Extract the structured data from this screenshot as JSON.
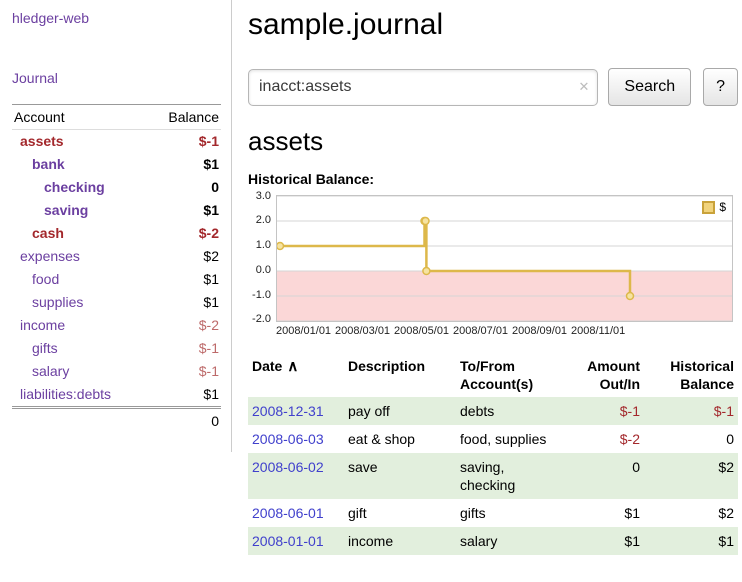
{
  "colors": {
    "link": "#6b3fa0",
    "date": "#4040cc",
    "neg": "#a3282c",
    "negsoft": "#bd6a6a",
    "row-green": "#e2efdd"
  },
  "sidebar": {
    "brand": "hledger-web",
    "journal_label": "Journal",
    "accounts": {
      "account_header": "Account",
      "balance_header": "Balance",
      "rows": [
        {
          "account": "assets",
          "balance": "$-1"
        },
        {
          "account": "bank",
          "balance": "$1"
        },
        {
          "account": "checking",
          "balance": "0"
        },
        {
          "account": "saving",
          "balance": "$1"
        },
        {
          "account": "cash",
          "balance": "$-2"
        },
        {
          "account": "expenses",
          "balance": "$2"
        },
        {
          "account": "food",
          "balance": "$1"
        },
        {
          "account": "supplies",
          "balance": "$1"
        },
        {
          "account": "income",
          "balance": "$-2"
        },
        {
          "account": "gifts",
          "balance": "$-1"
        },
        {
          "account": "salary",
          "balance": "$-1"
        },
        {
          "account": "liabilities:debts",
          "balance": "$1"
        }
      ],
      "total": "0"
    }
  },
  "main": {
    "title": "sample.journal",
    "search": {
      "value": "inacct:assets",
      "clear_icon": "✕",
      "button_label": "Search",
      "help_label": "?"
    },
    "heading": "assets",
    "register": {
      "headers": {
        "date": "Date",
        "sort_indicator": "∧",
        "description": "Description",
        "accounts_line1": "To/From",
        "accounts_line2": "Account(s)",
        "amount_line1": "Amount",
        "amount_line2": "Out/In",
        "balance_line1": "Historical",
        "balance_line2": "Balance"
      },
      "rows": [
        {
          "date": "2008-12-31",
          "description": "pay off",
          "accounts": "debts",
          "amount": "$-1",
          "balance": "$-1"
        },
        {
          "date": "2008-06-03",
          "description": "eat & shop",
          "accounts": "food, supplies",
          "amount": "$-2",
          "balance": "0"
        },
        {
          "date": "2008-06-02",
          "description": "save",
          "accounts": "saving, checking",
          "amount": "0",
          "balance": "$2"
        },
        {
          "date": "2008-06-01",
          "description": "gift",
          "accounts": "gifts",
          "amount": "$1",
          "balance": "$2"
        },
        {
          "date": "2008-01-01",
          "description": "income",
          "accounts": "salary",
          "amount": "$1",
          "balance": "$1"
        }
      ]
    }
  },
  "chart_data": {
    "type": "line",
    "title": "Historical Balance:",
    "legend": {
      "label": "$",
      "position": "top-right"
    },
    "ylim": [
      -2,
      3
    ],
    "y_ticks": [
      "3.0",
      "2.0",
      "1.0",
      "0.0",
      "-1.0",
      "-2.0"
    ],
    "x_tick_labels": [
      "2008/01/01",
      "2008/03/01",
      "2008/05/01",
      "2008/07/01",
      "2008/09/01",
      "2008/11/01"
    ],
    "step": true,
    "line_color": "#ddb84a",
    "marker_fill": "#f6e3a1",
    "negative_region_color": "#fbd7d7",
    "series": [
      {
        "name": "$",
        "points": [
          {
            "date": "2008-01-01",
            "value": 1
          },
          {
            "date": "2008-06-01",
            "value": 2
          },
          {
            "date": "2008-06-02",
            "value": 2
          },
          {
            "date": "2008-06-03",
            "value": 0
          },
          {
            "date": "2008-12-31",
            "value": -1
          }
        ]
      }
    ]
  }
}
